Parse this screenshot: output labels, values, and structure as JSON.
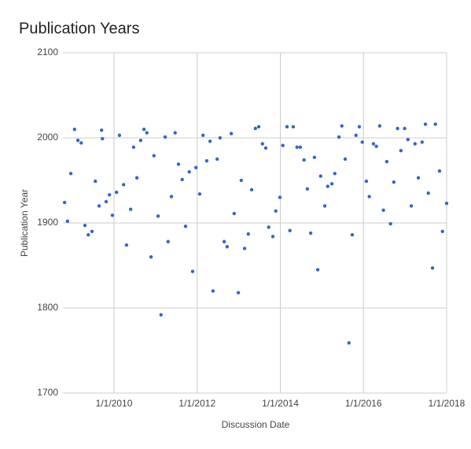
{
  "chart_data": {
    "type": "scatter",
    "title": "Publication Years",
    "x_label": "Discussion Date",
    "y_label": "Publication Year",
    "color": "#3366cc",
    "grid": true,
    "xlim": [
      2008.77,
      2018.0
    ],
    "ylim": [
      1700,
      2100
    ],
    "xticks": [
      {
        "value": 2010,
        "label": "1/1/2010"
      },
      {
        "value": 2012,
        "label": "1/1/2012"
      },
      {
        "value": 2014,
        "label": "1/1/2014"
      },
      {
        "value": 2016,
        "label": "1/1/2016"
      },
      {
        "value": 2018,
        "label": "1/1/2018"
      }
    ],
    "yticks": [
      1700,
      1800,
      1900,
      2000,
      2100
    ],
    "x": [
      2008.81,
      2008.88,
      2008.96,
      2009.05,
      2009.13,
      2009.21,
      2009.3,
      2009.38,
      2009.47,
      2009.55,
      2009.64,
      2009.7,
      2009.72,
      2009.81,
      2009.89,
      2009.96,
      2010.06,
      2010.13,
      2010.23,
      2010.3,
      2010.4,
      2010.47,
      2010.55,
      2010.64,
      2010.72,
      2010.79,
      2010.89,
      2010.96,
      2011.06,
      2011.13,
      2011.23,
      2011.3,
      2011.38,
      2011.47,
      2011.55,
      2011.64,
      2011.72,
      2011.81,
      2011.89,
      2011.97,
      2012.06,
      2012.14,
      2012.23,
      2012.31,
      2012.38,
      2012.48,
      2012.55,
      2012.65,
      2012.72,
      2012.82,
      2012.89,
      2012.99,
      2013.06,
      2013.14,
      2013.23,
      2013.31,
      2013.4,
      2013.48,
      2013.57,
      2013.65,
      2013.72,
      2013.82,
      2013.89,
      2013.99,
      2014.06,
      2014.16,
      2014.23,
      2014.31,
      2014.4,
      2014.48,
      2014.57,
      2014.65,
      2014.73,
      2014.82,
      2014.9,
      2014.97,
      2015.07,
      2015.14,
      2015.24,
      2015.31,
      2015.41,
      2015.48,
      2015.56,
      2015.65,
      2015.73,
      2015.82,
      2015.9,
      2015.97,
      2016.07,
      2016.14,
      2016.24,
      2016.31,
      2016.39,
      2016.48,
      2016.56,
      2016.65,
      2016.73,
      2016.82,
      2016.9,
      2016.99,
      2017.07,
      2017.15,
      2017.24,
      2017.32,
      2017.41,
      2017.49,
      2017.56,
      2017.66,
      2017.73,
      2017.83,
      2017.9,
      2018.0
    ],
    "values": [
      1924,
      1902,
      1958,
      2010,
      1997,
      1994,
      1897,
      1886,
      1890,
      1949,
      1920,
      2009,
      1999,
      1925,
      1933,
      1909,
      1936,
      2003,
      1945,
      1874,
      1916,
      1989,
      1953,
      1997,
      2010,
      2006,
      1860,
      1979,
      1908,
      1792,
      2001,
      1878,
      1931,
      2006,
      1969,
      1951,
      1896,
      1960,
      1843,
      1965,
      1934,
      2003,
      1973,
      1996,
      1820,
      1975,
      2000,
      1878,
      1872,
      2005,
      1911,
      1818,
      1950,
      1870,
      1887,
      1939,
      2011,
      2013,
      1993,
      1988,
      1895,
      1884,
      1914,
      1930,
      1991,
      2013,
      1891,
      2013,
      1989,
      1989,
      1974,
      1940,
      1888,
      1977,
      1845,
      1955,
      1920,
      1943,
      1946,
      1958,
      2001,
      2014,
      1975,
      1759,
      1886,
      2003,
      2013,
      1995,
      1949,
      1931,
      1993,
      1990,
      2014,
      1915,
      1972,
      1899,
      1948,
      2011,
      1985,
      2011,
      1998,
      1920,
      1993,
      1953,
      1995,
      2016,
      1935,
      1847,
      2016,
      1961,
      1890,
      1923
    ]
  }
}
